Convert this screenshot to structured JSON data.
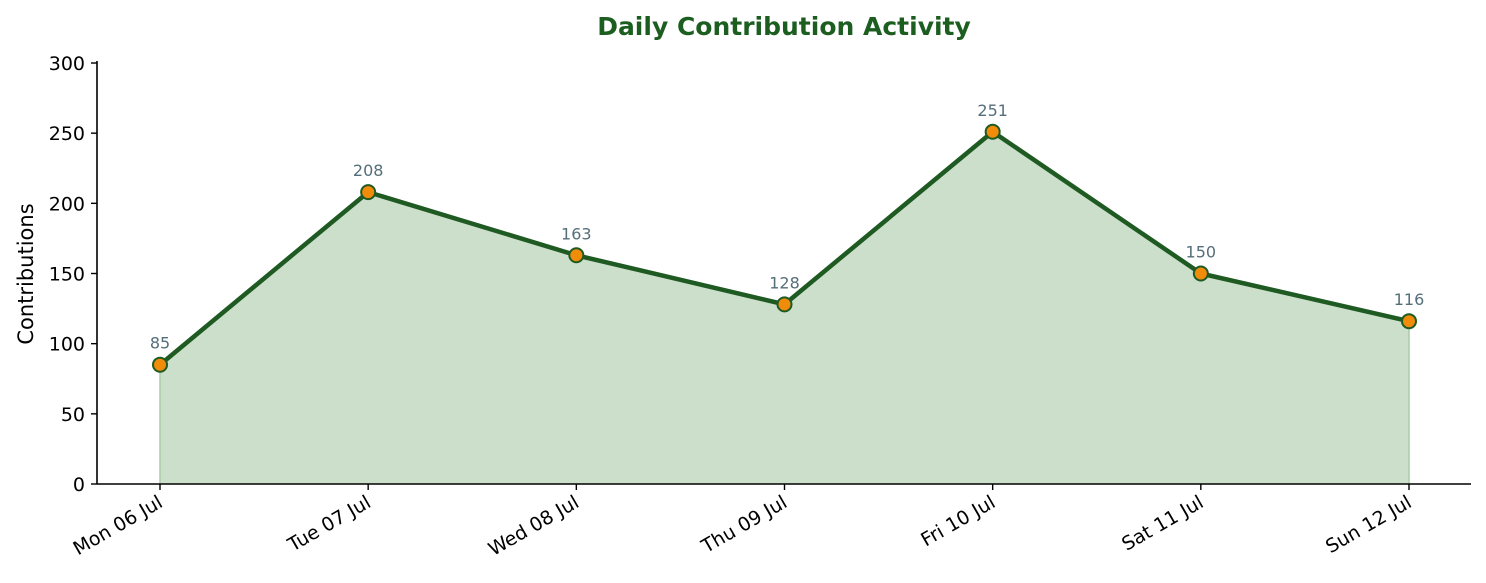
{
  "chart_data": {
    "type": "area",
    "title": "Daily Contribution Activity",
    "xlabel": "",
    "ylabel": "Contributions",
    "categories": [
      "Mon 06 Jul",
      "Tue 07 Jul",
      "Wed 08 Jul",
      "Thu 09 Jul",
      "Fri 10 Jul",
      "Sat 11 Jul",
      "Sun 12 Jul"
    ],
    "series": [
      {
        "values": [
          85,
          208,
          163,
          128,
          251,
          150,
          116
        ]
      }
    ],
    "ylim": [
      0,
      300
    ],
    "yticks": [
      0,
      50,
      100,
      150,
      200,
      250,
      300
    ],
    "grid": false,
    "data_labels": true,
    "legend": "none"
  },
  "colors": {
    "title": "#1b5e20",
    "line": "#1e5a22",
    "fill": "#cbdfcb",
    "fill_edge": "#a9cca9",
    "marker_fill": "#f18c0a",
    "marker_edge": "#1e5a22",
    "data_label": "#546e7a",
    "axis": "#000000"
  }
}
